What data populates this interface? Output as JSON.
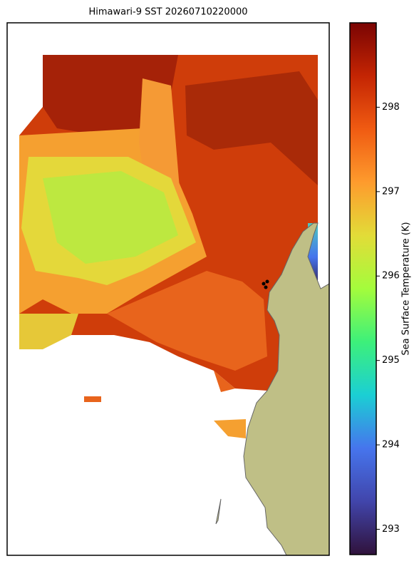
{
  "title": "Himawari-9 SST 20260710220000",
  "colorbar": {
    "label": "Sea Surface Temperature (K)",
    "lim": [
      292.7,
      299.0
    ],
    "ticks": [
      293,
      294,
      295,
      296,
      297,
      298
    ]
  }
}
